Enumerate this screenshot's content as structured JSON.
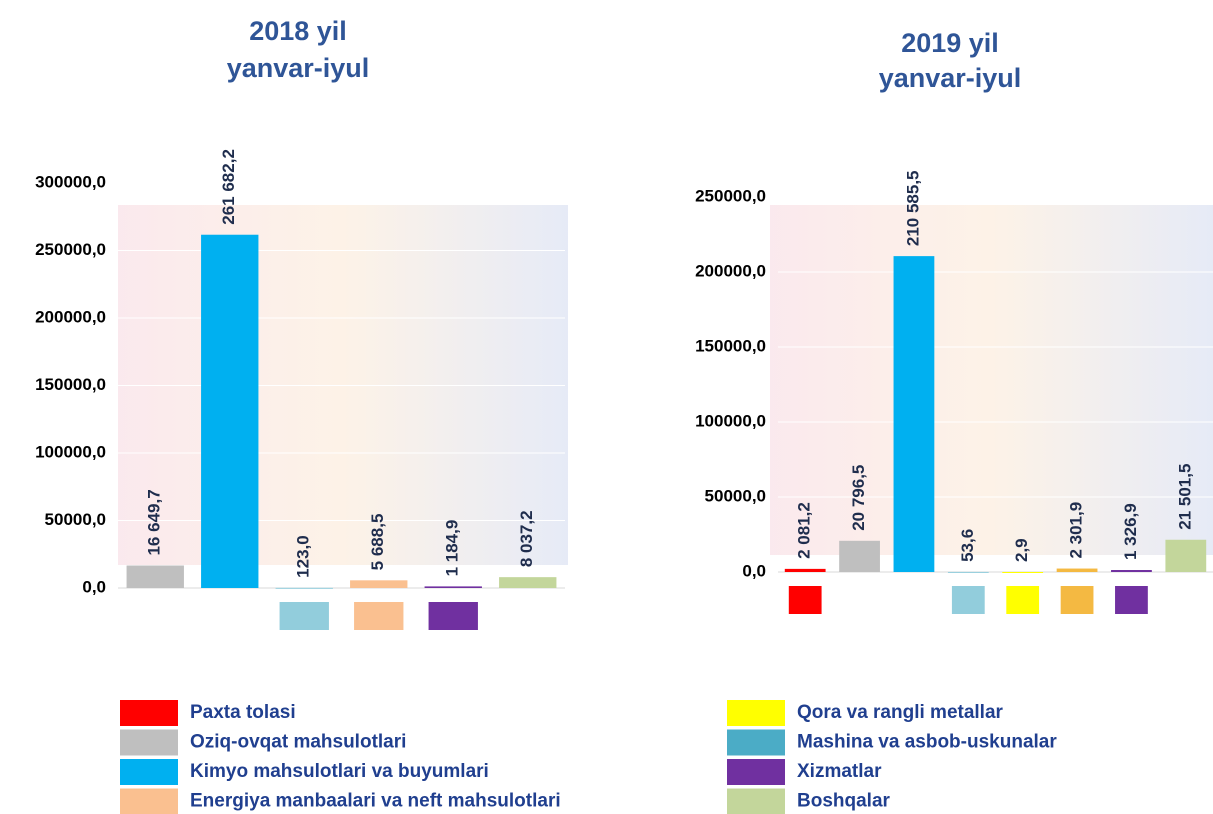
{
  "chart_data": [
    {
      "type": "bar",
      "title": "2018 yil",
      "subtitle": "yanvar-iyul",
      "values": [
        16649.7,
        261682.2,
        123.0,
        5688.5,
        1184.9,
        8037.2
      ],
      "value_labels": [
        "16 649,7",
        "261 682,2",
        "123,0",
        "5 688,5",
        "1 184,9",
        "8 037,2"
      ],
      "colors": [
        "#bfbfbf",
        "#00b0f0",
        "#92cddc",
        "#fac090",
        "#7030a0",
        "#c3d69b"
      ],
      "ylim": [
        0,
        300000
      ],
      "yticks": [
        {
          "value": 0,
          "label": "0,0"
        },
        {
          "value": 50000,
          "label": "50000,0"
        },
        {
          "value": 100000,
          "label": "100000,0"
        },
        {
          "value": 150000,
          "label": "150000,0"
        },
        {
          "value": 200000,
          "label": "200000,0"
        },
        {
          "value": 250000,
          "label": "250000,0"
        },
        {
          "value": 300000,
          "label": "300000,0"
        }
      ]
    },
    {
      "type": "bar",
      "title": "2019 yil",
      "subtitle": "yanvar-iyul",
      "values": [
        2081.2,
        20796.5,
        210585.5,
        53.6,
        2.9,
        2301.9,
        1326.9,
        21501.5
      ],
      "value_labels": [
        "2 081,2",
        "20 796,5",
        "210 585,5",
        "53,6",
        "2,9",
        "2 301,9",
        "1 326,9",
        "21 501,5"
      ],
      "colors": [
        "#ff0000",
        "#bfbfbf",
        "#00b0f0",
        "#92cddc",
        "#ffff00",
        "#f4b942",
        "#7030a0",
        "#c3d69b"
      ],
      "ylim": [
        0,
        250000
      ],
      "yticks": [
        {
          "value": 0,
          "label": "0,0"
        },
        {
          "value": 50000,
          "label": "50000,0"
        },
        {
          "value": 100000,
          "label": "100000,0"
        },
        {
          "value": 150000,
          "label": "150000,0"
        },
        {
          "value": 200000,
          "label": "200000,0"
        },
        {
          "value": 250000,
          "label": "250000,0"
        }
      ]
    }
  ],
  "legend": [
    {
      "name": "Paxta tolasi",
      "color": "#ff0000"
    },
    {
      "name": "Oziq-ovqat mahsulotlari",
      "color": "#bfbfbf"
    },
    {
      "name": "Kimyo mahsulotlari va buyumlari",
      "color": "#00b0f0"
    },
    {
      "name": "Energiya manbaalari va neft mahsulotlari",
      "color": "#fac090"
    },
    {
      "name": "Qora va rangli metallar",
      "color": "#ffff00"
    },
    {
      "name": "Mashina va asbob-uskunalar",
      "color": "#4bacc6"
    },
    {
      "name": "Xizmatlar",
      "color": "#7030a0"
    },
    {
      "name": "Boshqalar",
      "color": "#c3d69b"
    }
  ]
}
